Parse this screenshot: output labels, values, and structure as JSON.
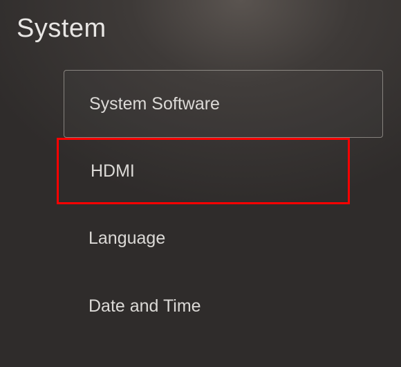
{
  "header": {
    "title": "System"
  },
  "menu": {
    "items": [
      {
        "label": "System Software",
        "selected": true,
        "highlighted": false
      },
      {
        "label": "HDMI",
        "selected": false,
        "highlighted": true
      },
      {
        "label": "Language",
        "selected": false,
        "highlighted": false
      },
      {
        "label": "Date and Time",
        "selected": false,
        "highlighted": false
      }
    ]
  },
  "colors": {
    "background_top": "#5a5450",
    "background_mid": "#3e3a38",
    "background_bottom": "#2f2c2b",
    "text": "#e8e6e4",
    "menu_text": "#dcdad7",
    "selected_border": "rgba(200,196,190,0.55)",
    "highlight_border": "#ff0000"
  },
  "typography": {
    "title_fontsize": 38,
    "menu_fontsize": 25,
    "font_weight": 300
  }
}
